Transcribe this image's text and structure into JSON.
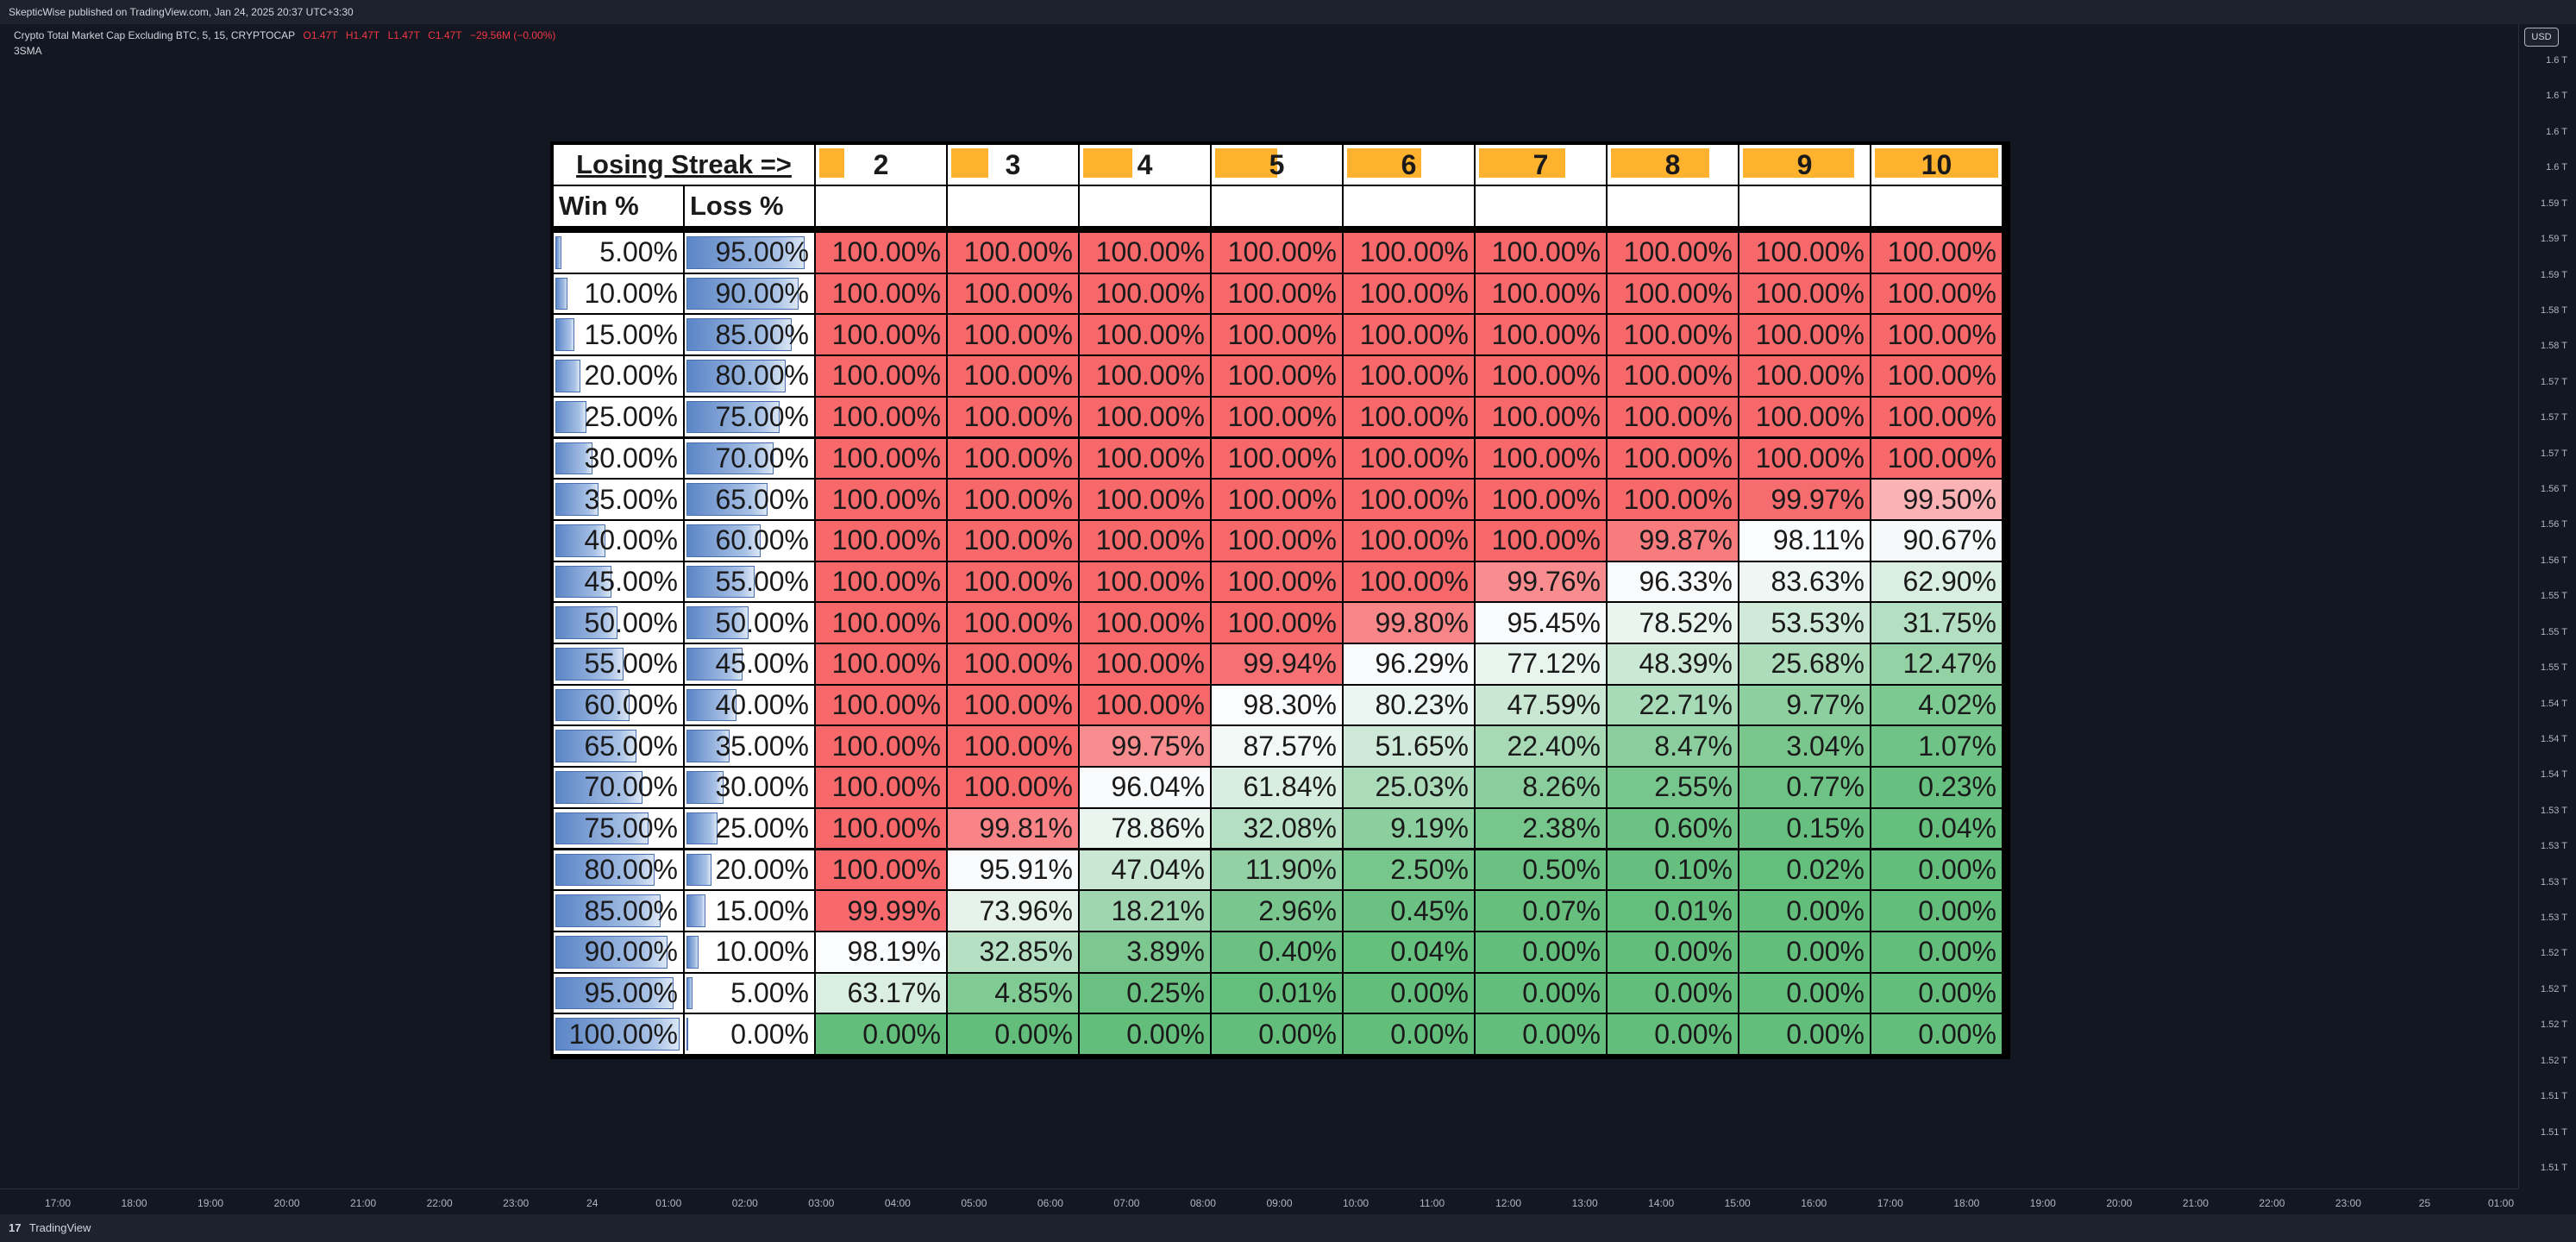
{
  "topbar": {
    "text": "SkepticWise published on TradingView.com, Jan 24, 2025 20:37 UTC+3:30"
  },
  "legend": {
    "symbol": "Crypto Total Market Cap Excluding BTC, 5, 15, CRYPTOCAP",
    "open": "O1.47T",
    "high": "H1.47T",
    "low": "L1.47T",
    "close": "C1.47T",
    "change": "−29.56M (−0.00%)",
    "indicator": "3SMA"
  },
  "currency": "USD",
  "y_ticks": [
    "1.6 T",
    "1.6 T",
    "1.6 T",
    "1.6 T",
    "1.59 T",
    "1.59 T",
    "1.59 T",
    "1.58 T",
    "1.58 T",
    "1.57 T",
    "1.57 T",
    "1.57 T",
    "1.56 T",
    "1.56 T",
    "1.56 T",
    "1.55 T",
    "1.55 T",
    "1.55 T",
    "1.54 T",
    "1.54 T",
    "1.54 T",
    "1.53 T",
    "1.53 T",
    "1.53 T",
    "1.53 T",
    "1.52 T",
    "1.52 T",
    "1.52 T",
    "1.52 T",
    "1.51 T",
    "1.51 T",
    "1.51 T"
  ],
  "x_ticks": [
    "17:00",
    "18:00",
    "19:00",
    "20:00",
    "21:00",
    "22:00",
    "23:00",
    "24",
    "01:00",
    "02:00",
    "03:00",
    "04:00",
    "05:00",
    "06:00",
    "07:00",
    "08:00",
    "09:00",
    "10:00",
    "11:00",
    "12:00",
    "13:00",
    "14:00",
    "15:00",
    "16:00",
    "17:00",
    "18:00",
    "19:00",
    "20:00",
    "21:00",
    "22:00",
    "23:00",
    "25",
    "01:00"
  ],
  "footer": {
    "logo": "17",
    "brand": "TradingView"
  },
  "table": {
    "title": "Losing Streak =>",
    "win_header": "Win %",
    "loss_header": "Loss %",
    "streaks": [
      "2",
      "3",
      "4",
      "5",
      "6",
      "7",
      "8",
      "9",
      "10"
    ],
    "streak_bar_fractions": [
      0.2,
      0.3,
      0.4,
      0.5,
      0.6,
      0.7,
      0.8,
      0.9,
      1.0
    ],
    "win": [
      "5.00%",
      "10.00%",
      "15.00%",
      "20.00%",
      "25.00%",
      "30.00%",
      "35.00%",
      "40.00%",
      "45.00%",
      "50.00%",
      "55.00%",
      "60.00%",
      "65.00%",
      "70.00%",
      "75.00%",
      "80.00%",
      "85.00%",
      "90.00%",
      "95.00%",
      "100.00%"
    ],
    "loss": [
      "95.00%",
      "90.00%",
      "85.00%",
      "80.00%",
      "75.00%",
      "70.00%",
      "65.00%",
      "60.00%",
      "55.00%",
      "50.00%",
      "45.00%",
      "40.00%",
      "35.00%",
      "30.00%",
      "25.00%",
      "20.00%",
      "15.00%",
      "10.00%",
      "5.00%",
      "0.00%"
    ],
    "rows": [
      [
        "100.00%",
        "100.00%",
        "100.00%",
        "100.00%",
        "100.00%",
        "100.00%",
        "100.00%",
        "100.00%",
        "100.00%"
      ],
      [
        "100.00%",
        "100.00%",
        "100.00%",
        "100.00%",
        "100.00%",
        "100.00%",
        "100.00%",
        "100.00%",
        "100.00%"
      ],
      [
        "100.00%",
        "100.00%",
        "100.00%",
        "100.00%",
        "100.00%",
        "100.00%",
        "100.00%",
        "100.00%",
        "100.00%"
      ],
      [
        "100.00%",
        "100.00%",
        "100.00%",
        "100.00%",
        "100.00%",
        "100.00%",
        "100.00%",
        "100.00%",
        "100.00%"
      ],
      [
        "100.00%",
        "100.00%",
        "100.00%",
        "100.00%",
        "100.00%",
        "100.00%",
        "100.00%",
        "100.00%",
        "100.00%"
      ],
      [
        "100.00%",
        "100.00%",
        "100.00%",
        "100.00%",
        "100.00%",
        "100.00%",
        "100.00%",
        "100.00%",
        "100.00%"
      ],
      [
        "100.00%",
        "100.00%",
        "100.00%",
        "100.00%",
        "100.00%",
        "100.00%",
        "100.00%",
        "99.97%",
        "99.50%"
      ],
      [
        "100.00%",
        "100.00%",
        "100.00%",
        "100.00%",
        "100.00%",
        "100.00%",
        "99.87%",
        "98.11%",
        "90.67%"
      ],
      [
        "100.00%",
        "100.00%",
        "100.00%",
        "100.00%",
        "100.00%",
        "99.76%",
        "96.33%",
        "83.63%",
        "62.90%"
      ],
      [
        "100.00%",
        "100.00%",
        "100.00%",
        "100.00%",
        "99.80%",
        "95.45%",
        "78.52%",
        "53.53%",
        "31.75%"
      ],
      [
        "100.00%",
        "100.00%",
        "100.00%",
        "99.94%",
        "96.29%",
        "77.12%",
        "48.39%",
        "25.68%",
        "12.47%"
      ],
      [
        "100.00%",
        "100.00%",
        "100.00%",
        "98.30%",
        "80.23%",
        "47.59%",
        "22.71%",
        "9.77%",
        "4.02%"
      ],
      [
        "100.00%",
        "100.00%",
        "99.75%",
        "87.57%",
        "51.65%",
        "22.40%",
        "8.47%",
        "3.04%",
        "1.07%"
      ],
      [
        "100.00%",
        "100.00%",
        "96.04%",
        "61.84%",
        "25.03%",
        "8.26%",
        "2.55%",
        "0.77%",
        "0.23%"
      ],
      [
        "100.00%",
        "99.81%",
        "78.86%",
        "32.08%",
        "9.19%",
        "2.38%",
        "0.60%",
        "0.15%",
        "0.04%"
      ],
      [
        "100.00%",
        "95.91%",
        "47.04%",
        "11.90%",
        "2.50%",
        "0.50%",
        "0.10%",
        "0.02%",
        "0.00%"
      ],
      [
        "99.99%",
        "73.96%",
        "18.21%",
        "2.96%",
        "0.45%",
        "0.07%",
        "0.01%",
        "0.00%",
        "0.00%"
      ],
      [
        "98.19%",
        "32.85%",
        "3.89%",
        "0.40%",
        "0.04%",
        "0.00%",
        "0.00%",
        "0.00%",
        "0.00%"
      ],
      [
        "63.17%",
        "4.85%",
        "0.25%",
        "0.01%",
        "0.00%",
        "0.00%",
        "0.00%",
        "0.00%",
        "0.00%"
      ],
      [
        "0.00%",
        "0.00%",
        "0.00%",
        "0.00%",
        "0.00%",
        "0.00%",
        "0.00%",
        "0.00%",
        "0.00%"
      ]
    ]
  }
}
